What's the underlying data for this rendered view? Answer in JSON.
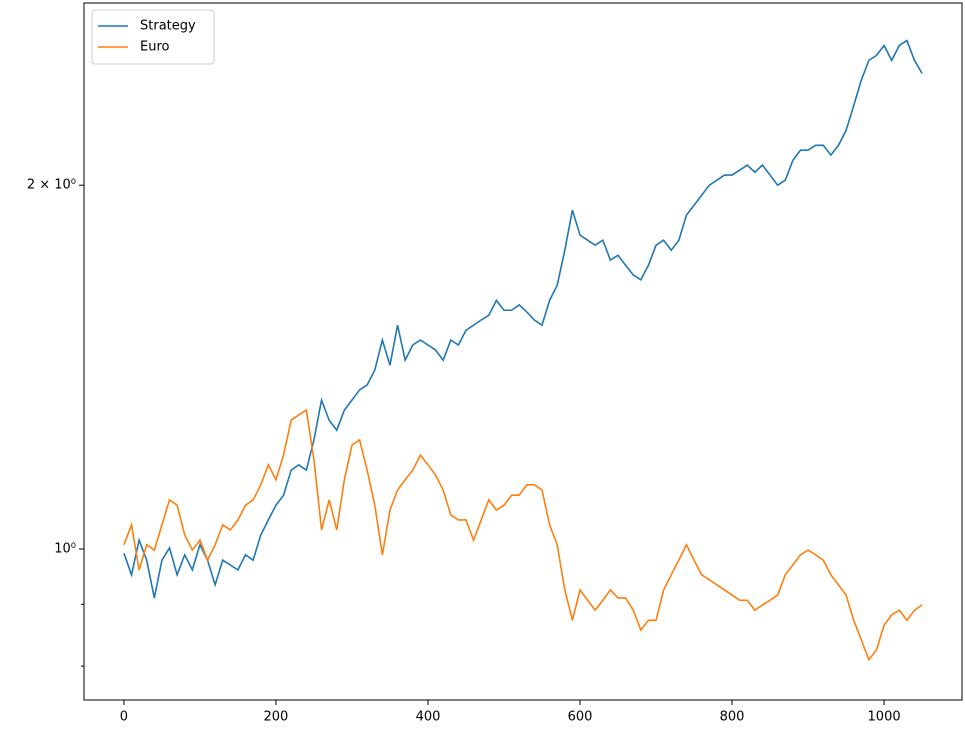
{
  "chart_data": {
    "type": "line",
    "x": [
      0,
      10,
      20,
      30,
      40,
      50,
      60,
      70,
      80,
      90,
      100,
      110,
      120,
      130,
      140,
      150,
      160,
      170,
      180,
      190,
      200,
      210,
      220,
      230,
      240,
      250,
      260,
      270,
      280,
      290,
      300,
      310,
      320,
      330,
      340,
      350,
      360,
      370,
      380,
      390,
      400,
      410,
      420,
      430,
      440,
      450,
      460,
      470,
      480,
      490,
      500,
      510,
      520,
      530,
      540,
      550,
      560,
      570,
      580,
      590,
      600,
      610,
      620,
      630,
      640,
      650,
      660,
      670,
      680,
      690,
      700,
      710,
      720,
      730,
      740,
      750,
      760,
      770,
      780,
      790,
      800,
      810,
      820,
      830,
      840,
      850,
      860,
      870,
      880,
      890,
      900,
      910,
      920,
      930,
      940,
      950,
      960,
      970,
      980,
      990,
      1000,
      1010,
      1020,
      1030,
      1040,
      1050
    ],
    "series": [
      {
        "name": "Strategy",
        "color": "#1f77b4",
        "values": [
          0.992,
          0.952,
          1.017,
          0.979,
          0.911,
          0.979,
          1.002,
          0.952,
          0.989,
          0.961,
          1.008,
          0.979,
          0.934,
          0.979,
          0.97,
          0.961,
          0.989,
          0.979,
          1.027,
          1.057,
          1.087,
          1.108,
          1.162,
          1.174,
          1.162,
          1.231,
          1.328,
          1.278,
          1.254,
          1.303,
          1.328,
          1.354,
          1.367,
          1.406,
          1.489,
          1.419,
          1.532,
          1.433,
          1.475,
          1.489,
          1.475,
          1.461,
          1.433,
          1.489,
          1.475,
          1.517,
          1.532,
          1.547,
          1.561,
          1.606,
          1.576,
          1.576,
          1.592,
          1.571,
          1.547,
          1.532,
          1.606,
          1.653,
          1.767,
          1.907,
          1.819,
          1.801,
          1.784,
          1.801,
          1.734,
          1.75,
          1.717,
          1.686,
          1.67,
          1.717,
          1.784,
          1.801,
          1.767,
          1.801,
          1.889,
          1.925,
          1.962,
          2.0,
          2.019,
          2.039,
          2.039,
          2.058,
          2.078,
          2.05,
          2.078,
          2.039,
          2.0,
          2.019,
          2.097,
          2.138,
          2.138,
          2.158,
          2.158,
          2.118,
          2.158,
          2.22,
          2.327,
          2.443,
          2.537,
          2.561,
          2.61,
          2.537,
          2.61,
          2.635,
          2.537,
          2.475
        ]
      },
      {
        "name": "Euro",
        "color": "#ff7f0e",
        "values": [
          1.008,
          1.047,
          0.961,
          1.008,
          0.998,
          1.047,
          1.098,
          1.087,
          1.027,
          0.998,
          1.017,
          0.979,
          1.008,
          1.047,
          1.037,
          1.057,
          1.087,
          1.098,
          1.13,
          1.174,
          1.141,
          1.196,
          1.278,
          1.291,
          1.303,
          1.185,
          1.037,
          1.098,
          1.037,
          1.141,
          1.219,
          1.231,
          1.162,
          1.087,
          0.989,
          1.077,
          1.119,
          1.141,
          1.162,
          1.196,
          1.174,
          1.151,
          1.119,
          1.067,
          1.057,
          1.057,
          1.017,
          1.057,
          1.098,
          1.077,
          1.087,
          1.108,
          1.108,
          1.13,
          1.13,
          1.119,
          1.047,
          1.008,
          0.925,
          0.873,
          0.925,
          0.907,
          0.89,
          0.907,
          0.925,
          0.911,
          0.911,
          0.89,
          0.857,
          0.873,
          0.873,
          0.925,
          0.952,
          0.979,
          1.008,
          0.979,
          0.952,
          0.943,
          0.934,
          0.925,
          0.916,
          0.907,
          0.907,
          0.89,
          0.899,
          0.907,
          0.916,
          0.952,
          0.97,
          0.989,
          0.998,
          0.989,
          0.979,
          0.952,
          0.934,
          0.916,
          0.873,
          0.841,
          0.81,
          0.825,
          0.865,
          0.882,
          0.89,
          0.873,
          0.89,
          0.899
        ]
      }
    ],
    "xlim": [
      -52.5,
      1102.5
    ],
    "xticks": [
      0,
      200,
      400,
      600,
      800,
      1000
    ],
    "ylim": [
      0.75,
      2.83
    ],
    "log_y": true,
    "yticks": [
      {
        "value": 1,
        "label": "10⁰"
      },
      {
        "value": 2,
        "label": "2 × 10⁰"
      }
    ],
    "yminorticks": [
      0.8,
      0.9
    ],
    "legend": "upper left"
  }
}
